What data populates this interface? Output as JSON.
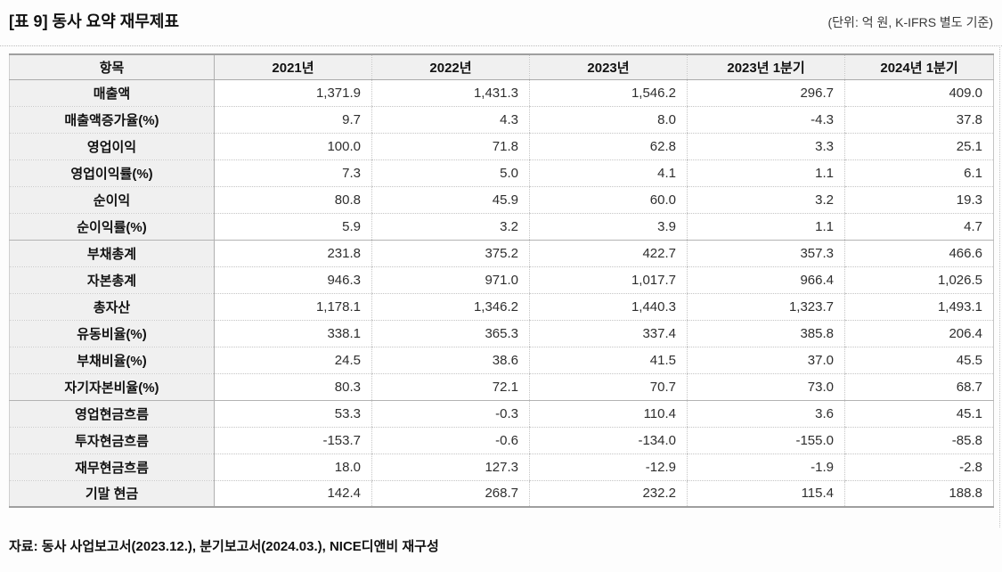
{
  "page": {
    "title": "[표 9] 동사 요약 재무제표",
    "unit_note": "(단위: 억 원, K-IFRS 별도 기준)",
    "source_note": "자료: 동사 사업보고서(2023.12.), 분기보고서(2024.03.), NICE디앤비 재구성"
  },
  "colors": {
    "header_bg": "#f0f0f0",
    "table_border_strong": "#9f9f9f",
    "group_separator": "#b3b3b3",
    "row_separator_dotted": "#c6c6c6"
  },
  "chart_data": {
    "type": "table",
    "title": "[표 9] 동사 요약 재무제표",
    "unit": "억 원, K-IFRS 별도 기준",
    "columns": [
      "항목",
      "2021년",
      "2022년",
      "2023년",
      "2023년 1분기",
      "2024년 1분기"
    ],
    "rows": [
      {
        "label": "매출액",
        "values": [
          "1,371.9",
          "1,431.3",
          "1,546.2",
          "296.7",
          "409.0"
        ],
        "group_end": false
      },
      {
        "label": "매출액증가율(%)",
        "values": [
          "9.7",
          "4.3",
          "8.0",
          "-4.3",
          "37.8"
        ],
        "group_end": false
      },
      {
        "label": "영업이익",
        "values": [
          "100.0",
          "71.8",
          "62.8",
          "3.3",
          "25.1"
        ],
        "group_end": false
      },
      {
        "label": "영업이익률(%)",
        "values": [
          "7.3",
          "5.0",
          "4.1",
          "1.1",
          "6.1"
        ],
        "group_end": false
      },
      {
        "label": "순이익",
        "values": [
          "80.8",
          "45.9",
          "60.0",
          "3.2",
          "19.3"
        ],
        "group_end": false
      },
      {
        "label": "순이익률(%)",
        "values": [
          "5.9",
          "3.2",
          "3.9",
          "1.1",
          "4.7"
        ],
        "group_end": true
      },
      {
        "label": "부채총계",
        "values": [
          "231.8",
          "375.2",
          "422.7",
          "357.3",
          "466.6"
        ],
        "group_end": false
      },
      {
        "label": "자본총계",
        "values": [
          "946.3",
          "971.0",
          "1,017.7",
          "966.4",
          "1,026.5"
        ],
        "group_end": false
      },
      {
        "label": "총자산",
        "values": [
          "1,178.1",
          "1,346.2",
          "1,440.3",
          "1,323.7",
          "1,493.1"
        ],
        "group_end": false
      },
      {
        "label": "유동비율(%)",
        "values": [
          "338.1",
          "365.3",
          "337.4",
          "385.8",
          "206.4"
        ],
        "group_end": false
      },
      {
        "label": "부채비율(%)",
        "values": [
          "24.5",
          "38.6",
          "41.5",
          "37.0",
          "45.5"
        ],
        "group_end": false
      },
      {
        "label": "자기자본비율(%)",
        "values": [
          "80.3",
          "72.1",
          "70.7",
          "73.0",
          "68.7"
        ],
        "group_end": true
      },
      {
        "label": "영업현금흐름",
        "values": [
          "53.3",
          "-0.3",
          "110.4",
          "3.6",
          "45.1"
        ],
        "group_end": false
      },
      {
        "label": "투자현금흐름",
        "values": [
          "-153.7",
          "-0.6",
          "-134.0",
          "-155.0",
          "-85.8"
        ],
        "group_end": false
      },
      {
        "label": "재무현금흐름",
        "values": [
          "18.0",
          "127.3",
          "-12.9",
          "-1.9",
          "-2.8"
        ],
        "group_end": false
      },
      {
        "label": "기말 현금",
        "values": [
          "142.4",
          "268.7",
          "232.2",
          "115.4",
          "188.8"
        ],
        "group_end": false
      }
    ]
  }
}
